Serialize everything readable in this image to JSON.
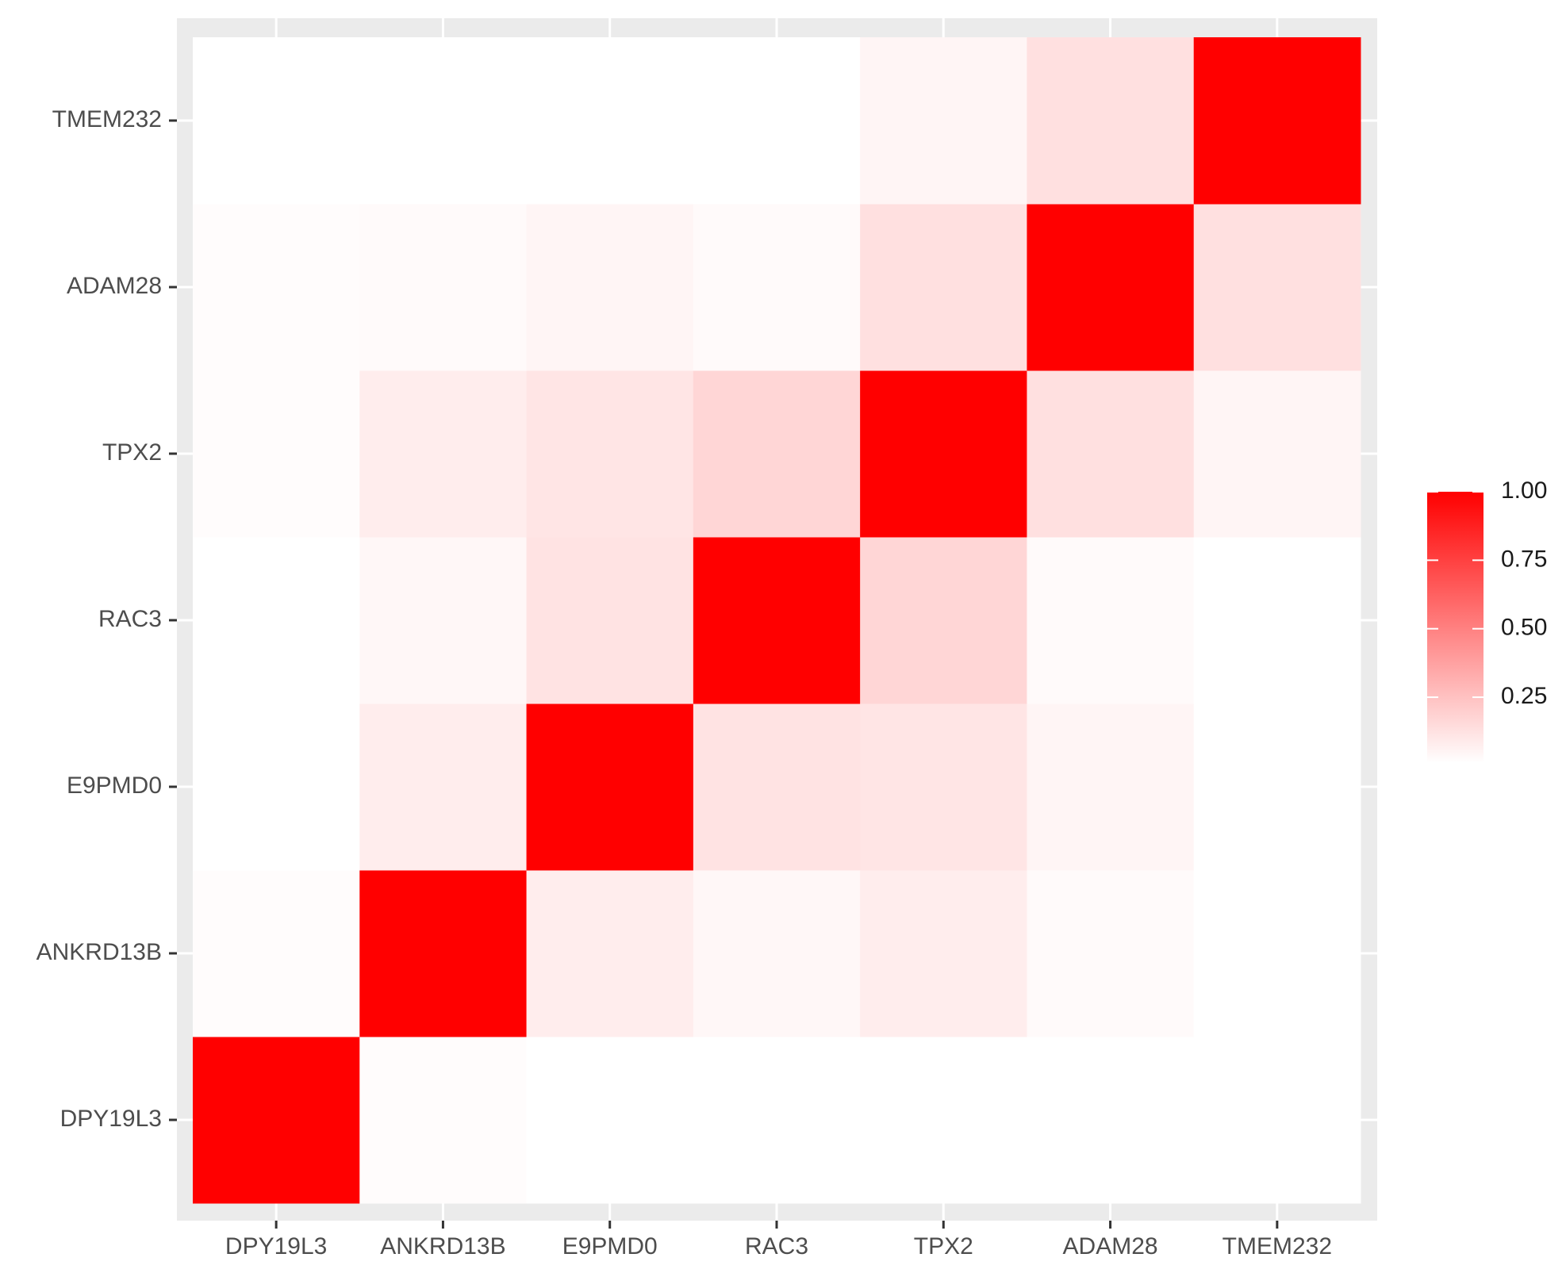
{
  "chart_data": {
    "type": "heatmap",
    "x_categories": [
      "DPY19L3",
      "ANKRD13B",
      "E9PMD0",
      "RAC3",
      "TPX2",
      "ADAM28",
      "TMEM232"
    ],
    "y_categories": [
      "DPY19L3",
      "ANKRD13B",
      "E9PMD0",
      "RAC3",
      "TPX2",
      "ADAM28",
      "TMEM232"
    ],
    "values": [
      [
        1,
        0.02,
        0.01,
        0.01,
        0.01,
        0.01,
        0.01
      ],
      [
        0.02,
        1,
        0.08,
        0.04,
        0.08,
        0.03,
        0.01
      ],
      [
        0.01,
        0.08,
        1,
        0.12,
        0.11,
        0.05,
        0.01
      ],
      [
        0.01,
        0.04,
        0.12,
        1,
        0.17,
        0.03,
        0.01
      ],
      [
        0.02,
        0.08,
        0.11,
        0.17,
        1,
        0.13,
        0.05
      ],
      [
        0.02,
        0.03,
        0.05,
        0.03,
        0.13,
        1,
        0.13
      ],
      [
        0.01,
        0.01,
        0.01,
        0.01,
        0.05,
        0.13,
        1
      ]
    ],
    "low_color": "#ffffff",
    "high_color": "#ff0000",
    "colorbar_lim": [
      0.01,
      1
    ],
    "colorbar_ticks": [
      0.25,
      {
        "value": 0.5,
        "label": "0.50"
      },
      0.75,
      {
        "value": 1,
        "label": "1.00"
      }
    ]
  }
}
